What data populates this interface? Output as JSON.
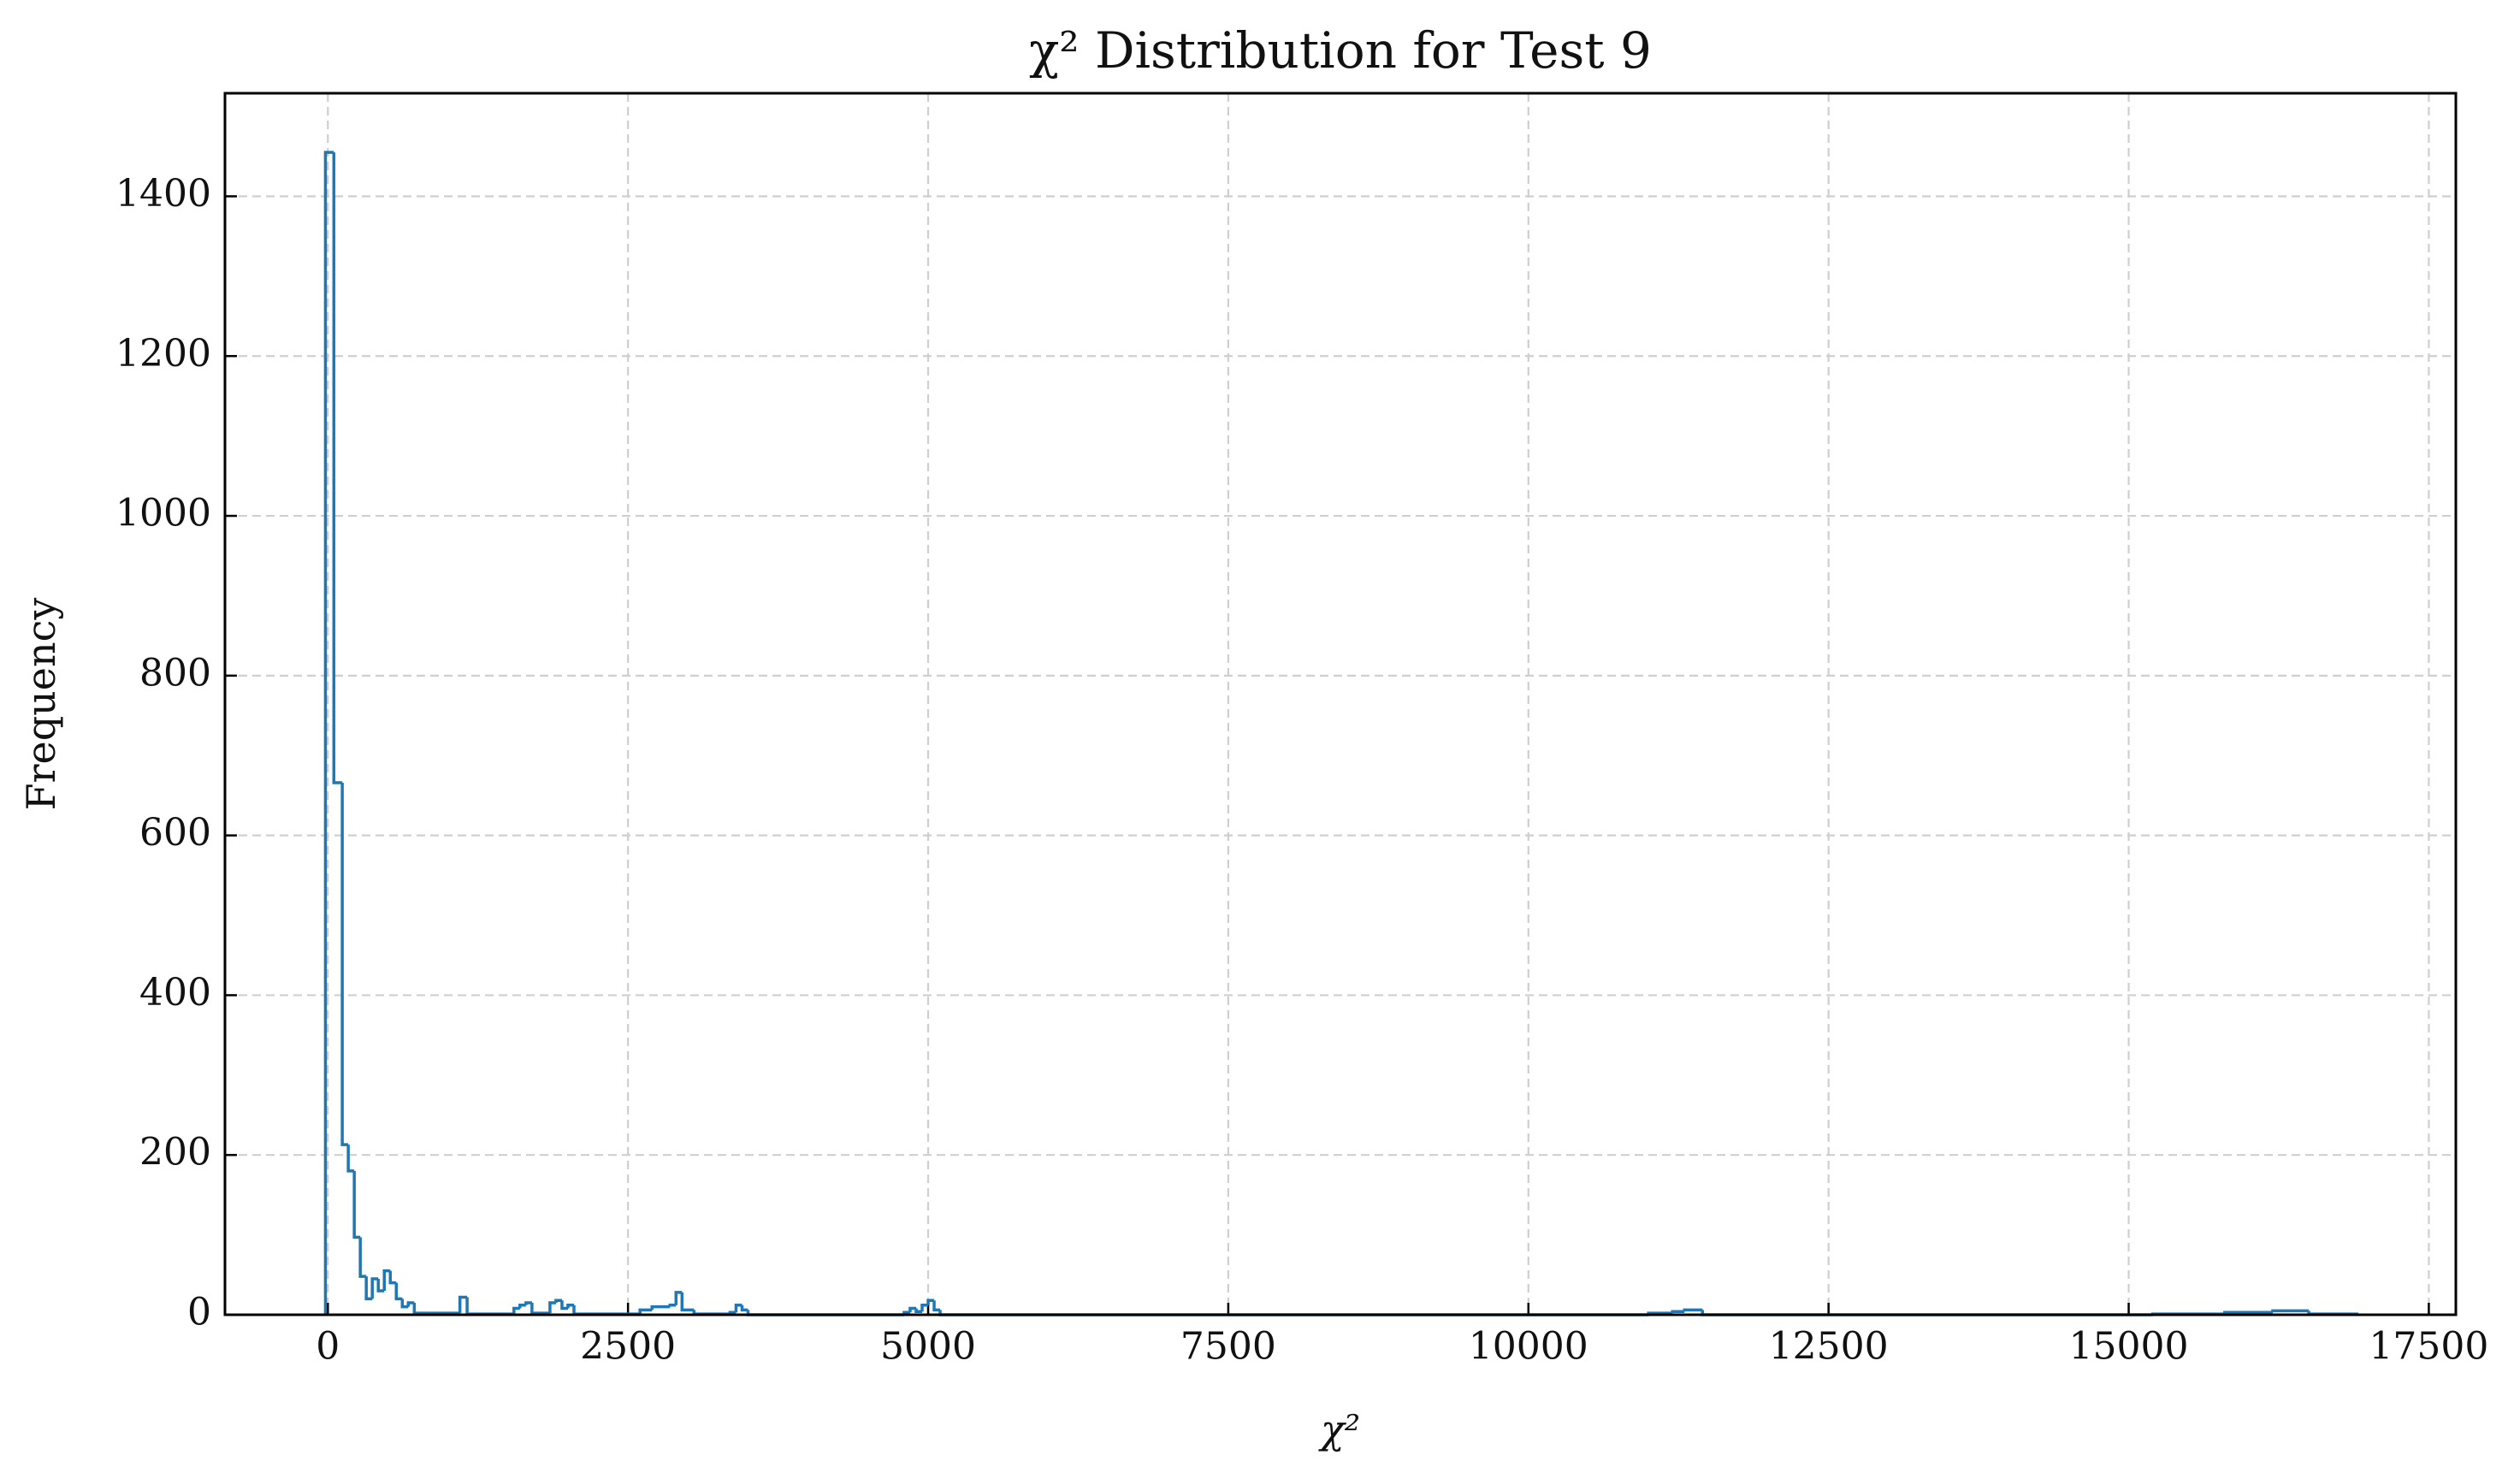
{
  "chart_data": {
    "type": "histogram",
    "title": "χ² Distribution for Test 9",
    "xlabel": "χ²",
    "ylabel": "Frequency",
    "bins": [
      -20,
      50,
      120,
      170,
      220,
      270,
      320,
      370,
      420,
      470,
      520,
      570,
      620,
      670,
      720,
      1100,
      1160,
      1550,
      1600,
      1650,
      1700,
      1850,
      1900,
      1950,
      2000,
      2050,
      2600,
      2700,
      2850,
      2900,
      2950,
      3050,
      3350,
      3400,
      3450,
      3500,
      4800,
      4850,
      4900,
      4950,
      5000,
      5050,
      5100,
      11000,
      11200,
      11300,
      11450,
      15200,
      15800,
      16200,
      16500,
      16900
    ],
    "values": [
      1455,
      666,
      213,
      180,
      97,
      48,
      20,
      45,
      30,
      55,
      40,
      20,
      10,
      15,
      2,
      22,
      1,
      8,
      12,
      15,
      2,
      15,
      18,
      8,
      12,
      1,
      6,
      10,
      12,
      28,
      6,
      1,
      3,
      12,
      6,
      0,
      3,
      8,
      4,
      12,
      18,
      6,
      0,
      2,
      4,
      6,
      0,
      1,
      3,
      5,
      1
    ],
    "color": "#1f77b4",
    "xlim": [
      -857,
      17725
    ],
    "ylim": [
      0,
      1529
    ],
    "xticks": [
      0,
      2500,
      5000,
      7500,
      10000,
      12500,
      15000,
      17500
    ],
    "yticks": [
      0,
      200,
      400,
      600,
      800,
      1000,
      1200,
      1400
    ],
    "grid": true
  }
}
